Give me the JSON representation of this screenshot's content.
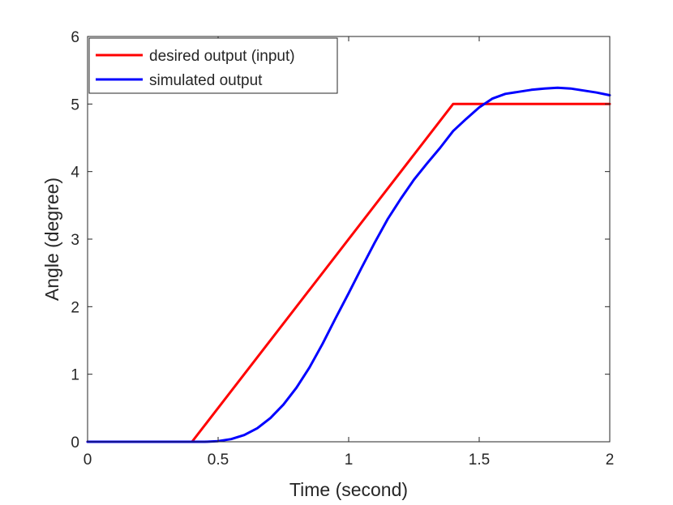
{
  "chart_data": {
    "type": "line",
    "title": "",
    "xlabel": "Time (second)",
    "ylabel": "Angle (degree)",
    "xlim": [
      0,
      2
    ],
    "ylim": [
      0,
      6
    ],
    "xticks": [
      0,
      0.5,
      1,
      1.5,
      2
    ],
    "xtick_labels": [
      "0",
      "0.5",
      "1",
      "1.5",
      "2"
    ],
    "yticks": [
      0,
      1,
      2,
      3,
      4,
      5,
      6
    ],
    "ytick_labels": [
      "0",
      "1",
      "2",
      "3",
      "4",
      "5",
      "6"
    ],
    "grid": false,
    "legend_position": "top-left",
    "series": [
      {
        "name": "desired output (input)",
        "color": "#ff0000",
        "x": [
          0,
          0.4,
          1.4,
          2.0
        ],
        "y": [
          0,
          0,
          5,
          5
        ]
      },
      {
        "name": "simulated output",
        "color": "#0000ff",
        "x": [
          0,
          0.45,
          0.5,
          0.55,
          0.6,
          0.65,
          0.7,
          0.75,
          0.8,
          0.85,
          0.9,
          0.95,
          1.0,
          1.05,
          1.1,
          1.15,
          1.2,
          1.25,
          1.3,
          1.35,
          1.4,
          1.45,
          1.5,
          1.55,
          1.6,
          1.65,
          1.7,
          1.75,
          1.8,
          1.85,
          1.9,
          1.95,
          2.0
        ],
        "y": [
          0,
          0,
          0.01,
          0.04,
          0.1,
          0.2,
          0.35,
          0.55,
          0.8,
          1.1,
          1.45,
          1.83,
          2.2,
          2.58,
          2.95,
          3.3,
          3.6,
          3.88,
          4.12,
          4.35,
          4.6,
          4.78,
          4.95,
          5.08,
          5.15,
          5.18,
          5.21,
          5.23,
          5.24,
          5.23,
          5.2,
          5.17,
          5.13
        ]
      }
    ]
  }
}
